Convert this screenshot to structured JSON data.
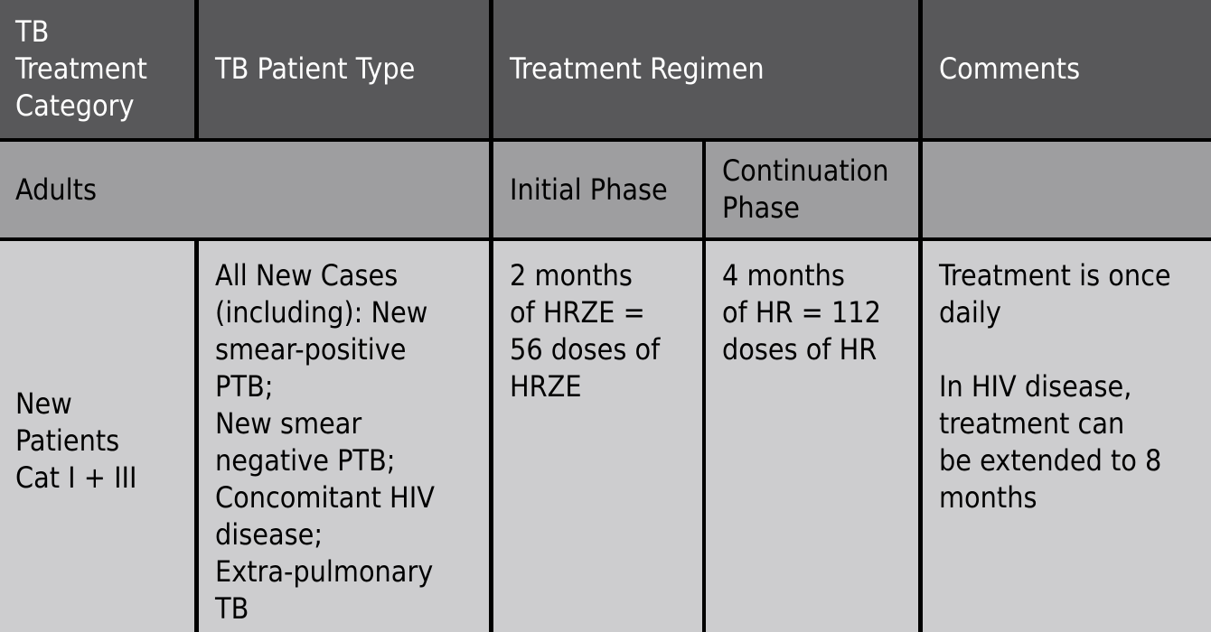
{
  "header": {
    "category_lines": [
      "TB",
      "Treatment",
      "Category"
    ],
    "patient_type": "TB Patient Type",
    "regimen": "Treatment Regimen",
    "comments": "Comments"
  },
  "subheader": {
    "adults": "Adults",
    "initial_phase": "Initial Phase",
    "continuation_lines": [
      "Continuation",
      "Phase"
    ]
  },
  "row": {
    "category_lines": [
      "New",
      "Patients",
      "Cat I + III"
    ],
    "patient_type_lines": [
      "All New Cases",
      "(including): New",
      "smear-positive",
      "PTB;",
      "New smear",
      "negative PTB;",
      "Concomitant HIV",
      "disease;",
      "Extra-pulmonary",
      "TB"
    ],
    "initial_lines": [
      "2 months",
      "of HRZE =",
      "56 doses of",
      "HRZE"
    ],
    "continuation_lines": [
      "4 months",
      "of HR = 112",
      "doses of HR"
    ],
    "comments_lines_1": [
      "Treatment is once",
      "daily"
    ],
    "comments_lines_2": [
      "In HIV disease,",
      "treatment can",
      "be extended to 8",
      "months"
    ]
  },
  "colors": {
    "header_bg": "#58585a",
    "subheader_bg": "#9e9ea0",
    "body_bg": "#cdcdcf",
    "border": "#000000"
  }
}
